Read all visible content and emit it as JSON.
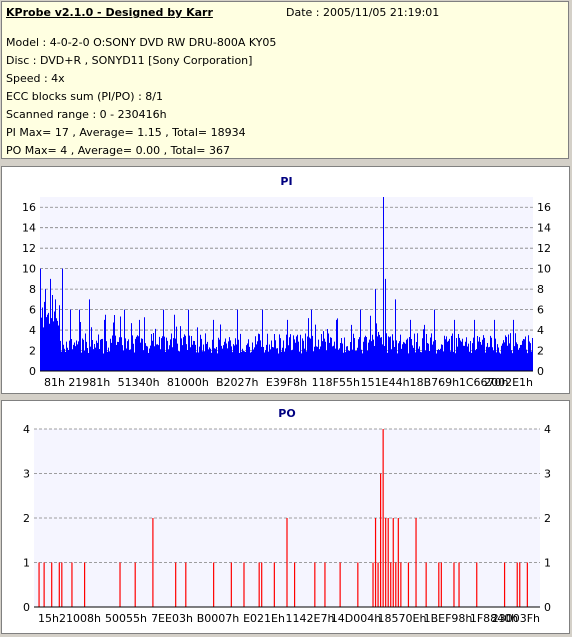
{
  "header": {
    "title": "KProbe v2.1.0 - Designed by Karr",
    "date": "Date : 2005/11/05 21:19:01",
    "lines": [
      "Model : 4-0-2-0 O:SONY    DVD RW DRU-800A  KY05",
      "Disc : DVD+R , SONYD11 [Sony Corporation]",
      "Speed : 4x",
      "ECC blocks sum (PI/PO) : 8/1",
      "Scanned range : 0 - 230416h",
      "PI Max= 17 , Average= 1.15 , Total= 18934",
      "PO Max= 4 , Average= 0.00 , Total= 367"
    ]
  },
  "colors": {
    "pi": "#0000ff",
    "po": "#ff0000",
    "title": "#000080",
    "grid": "#808080"
  },
  "chart_data": [
    {
      "type": "bar",
      "title": "PI",
      "ylim": [
        0,
        17
      ],
      "yticks": [
        0,
        2,
        4,
        6,
        8,
        10,
        12,
        14,
        16
      ],
      "xticks": [
        "81h",
        "21981h",
        "51340h",
        "81000h",
        "B2027h",
        "E39F8h",
        "118F55h",
        "151E44h",
        "18B769h",
        "1C6670h",
        "2002E1h"
      ],
      "xrange": [
        0,
        230416
      ],
      "grid": "horizontal dashed",
      "baseline": 2,
      "peaks": [
        {
          "x": 0.0,
          "v": 10
        },
        {
          "x": 0.01,
          "v": 8
        },
        {
          "x": 0.02,
          "v": 9
        },
        {
          "x": 0.03,
          "v": 7
        },
        {
          "x": 0.045,
          "v": 10
        },
        {
          "x": 0.06,
          "v": 6
        },
        {
          "x": 0.08,
          "v": 6
        },
        {
          "x": 0.1,
          "v": 7
        },
        {
          "x": 0.13,
          "v": 5
        },
        {
          "x": 0.17,
          "v": 6
        },
        {
          "x": 0.2,
          "v": 5
        },
        {
          "x": 0.25,
          "v": 6
        },
        {
          "x": 0.3,
          "v": 6
        },
        {
          "x": 0.35,
          "v": 5
        },
        {
          "x": 0.4,
          "v": 6
        },
        {
          "x": 0.45,
          "v": 6
        },
        {
          "x": 0.5,
          "v": 5
        },
        {
          "x": 0.55,
          "v": 6
        },
        {
          "x": 0.6,
          "v": 5
        },
        {
          "x": 0.65,
          "v": 6
        },
        {
          "x": 0.68,
          "v": 8
        },
        {
          "x": 0.695,
          "v": 17
        },
        {
          "x": 0.7,
          "v": 9
        },
        {
          "x": 0.72,
          "v": 7
        },
        {
          "x": 0.75,
          "v": 5
        },
        {
          "x": 0.8,
          "v": 6
        },
        {
          "x": 0.84,
          "v": 5
        },
        {
          "x": 0.88,
          "v": 5
        },
        {
          "x": 0.92,
          "v": 5
        },
        {
          "x": 0.96,
          "v": 5
        }
      ]
    },
    {
      "type": "bar",
      "title": "PO",
      "ylim": [
        0,
        4
      ],
      "yticks": [
        0,
        1,
        2,
        3,
        4
      ],
      "xticks": [
        "15h",
        "21008h",
        "50055h",
        "7EE03h",
        "B0007h",
        "E021Eh",
        "1142E7h",
        "14D004h",
        "18570Eh",
        "1BEF98h",
        "1F8840h",
        "23003Fh"
      ],
      "xrange": [
        0,
        230416
      ],
      "grid": "horizontal dashed",
      "bars": [
        {
          "x": 0.01,
          "v": 1
        },
        {
          "x": 0.02,
          "v": 1
        },
        {
          "x": 0.035,
          "v": 1
        },
        {
          "x": 0.05,
          "v": 1
        },
        {
          "x": 0.055,
          "v": 1
        },
        {
          "x": 0.075,
          "v": 1
        },
        {
          "x": 0.1,
          "v": 1
        },
        {
          "x": 0.17,
          "v": 1
        },
        {
          "x": 0.2,
          "v": 1
        },
        {
          "x": 0.235,
          "v": 2
        },
        {
          "x": 0.28,
          "v": 1
        },
        {
          "x": 0.3,
          "v": 1
        },
        {
          "x": 0.355,
          "v": 1
        },
        {
          "x": 0.39,
          "v": 1
        },
        {
          "x": 0.415,
          "v": 1
        },
        {
          "x": 0.445,
          "v": 1
        },
        {
          "x": 0.45,
          "v": 1
        },
        {
          "x": 0.475,
          "v": 1
        },
        {
          "x": 0.5,
          "v": 2
        },
        {
          "x": 0.515,
          "v": 1
        },
        {
          "x": 0.555,
          "v": 1
        },
        {
          "x": 0.575,
          "v": 1
        },
        {
          "x": 0.605,
          "v": 1
        },
        {
          "x": 0.64,
          "v": 1
        },
        {
          "x": 0.67,
          "v": 1
        },
        {
          "x": 0.675,
          "v": 2
        },
        {
          "x": 0.68,
          "v": 1
        },
        {
          "x": 0.685,
          "v": 3
        },
        {
          "x": 0.69,
          "v": 4
        },
        {
          "x": 0.695,
          "v": 2
        },
        {
          "x": 0.7,
          "v": 2
        },
        {
          "x": 0.705,
          "v": 1
        },
        {
          "x": 0.71,
          "v": 2
        },
        {
          "x": 0.715,
          "v": 1
        },
        {
          "x": 0.72,
          "v": 2
        },
        {
          "x": 0.725,
          "v": 1
        },
        {
          "x": 0.74,
          "v": 1
        },
        {
          "x": 0.755,
          "v": 2
        },
        {
          "x": 0.775,
          "v": 1
        },
        {
          "x": 0.8,
          "v": 1
        },
        {
          "x": 0.805,
          "v": 1
        },
        {
          "x": 0.83,
          "v": 1
        },
        {
          "x": 0.84,
          "v": 1
        },
        {
          "x": 0.875,
          "v": 1
        },
        {
          "x": 0.93,
          "v": 1
        },
        {
          "x": 0.955,
          "v": 1
        },
        {
          "x": 0.96,
          "v": 1
        },
        {
          "x": 0.975,
          "v": 1
        }
      ]
    }
  ]
}
